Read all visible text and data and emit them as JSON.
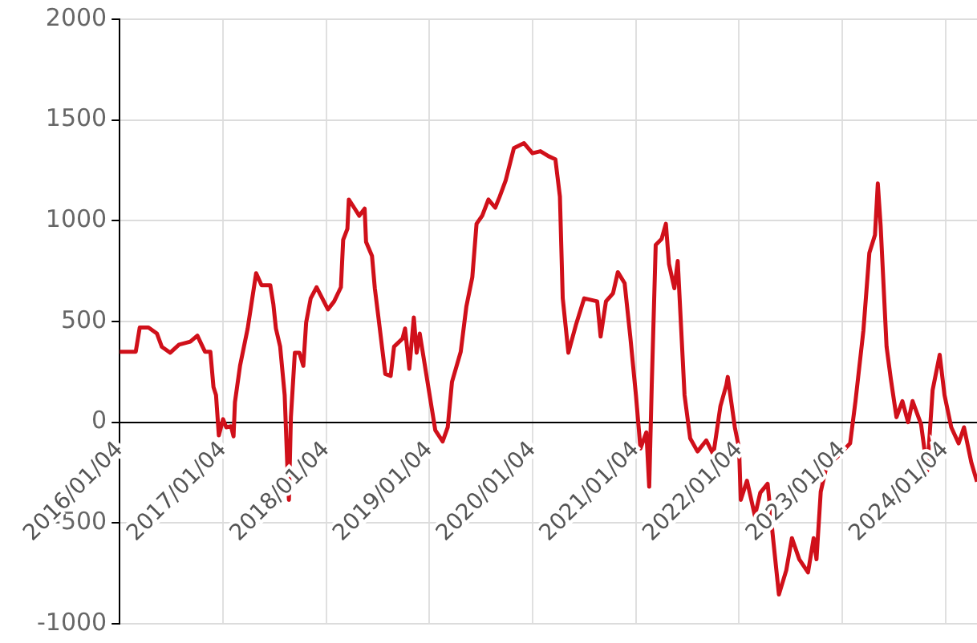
{
  "chart_data": {
    "type": "line",
    "x": [
      "2016-01-04",
      "2016-03-01",
      "2016-03-15",
      "2016-04-15",
      "2016-05-15",
      "2016-06-01",
      "2016-07-01",
      "2016-08-01",
      "2016-09-10",
      "2016-10-05",
      "2016-10-20",
      "2016-11-01",
      "2016-11-20",
      "2016-12-01",
      "2016-12-10",
      "2016-12-20",
      "2017-01-04",
      "2017-01-15",
      "2017-02-01",
      "2017-02-10",
      "2017-02-15",
      "2017-03-05",
      "2017-04-01",
      "2017-04-20",
      "2017-05-01",
      "2017-05-20",
      "2017-06-20",
      "2017-07-01",
      "2017-07-10",
      "2017-07-25",
      "2017-08-10",
      "2017-08-20",
      "2017-08-25",
      "2017-09-01",
      "2017-09-15",
      "2017-10-01",
      "2017-10-15",
      "2017-10-25",
      "2017-11-10",
      "2017-12-01",
      "2018-01-10",
      "2018-02-01",
      "2018-02-25",
      "2018-03-05",
      "2018-03-20",
      "2018-03-25",
      "2018-04-15",
      "2018-05-01",
      "2018-05-20",
      "2018-05-25",
      "2018-06-15",
      "2018-06-25",
      "2018-07-10",
      "2018-08-01",
      "2018-08-20",
      "2018-09-01",
      "2018-10-01",
      "2018-10-10",
      "2018-10-25",
      "2018-11-10",
      "2018-11-20",
      "2018-12-01",
      "2019-01-25",
      "2019-02-20",
      "2019-03-10",
      "2019-03-25",
      "2019-04-25",
      "2019-05-15",
      "2019-06-05",
      "2019-06-20",
      "2019-07-10",
      "2019-08-01",
      "2019-08-25",
      "2019-09-10",
      "2019-10-01",
      "2019-10-30",
      "2019-12-05",
      "2020-01-04",
      "2020-02-01",
      "2020-03-01",
      "2020-03-25",
      "2020-04-10",
      "2020-04-20",
      "2020-05-10",
      "2020-06-05",
      "2020-07-05",
      "2020-08-20",
      "2020-09-01",
      "2020-09-20",
      "2020-10-15",
      "2020-11-01",
      "2020-11-25",
      "2020-12-15",
      "2021-01-04",
      "2021-01-20",
      "2021-02-10",
      "2021-02-20",
      "2021-03-01",
      "2021-03-15",
      "2021-04-05",
      "2021-04-20",
      "2021-05-01",
      "2021-05-20",
      "2021-06-01",
      "2021-06-25",
      "2021-07-15",
      "2021-08-10",
      "2021-09-10",
      "2021-10-05",
      "2021-10-30",
      "2021-11-20",
      "2021-11-25",
      "2021-12-20",
      "2022-01-04",
      "2022-01-10",
      "2022-02-01",
      "2022-03-01",
      "2022-03-20",
      "2022-04-15",
      "2022-05-05",
      "2022-05-25",
      "2022-06-20",
      "2022-07-10",
      "2022-08-05",
      "2022-09-05",
      "2022-09-25",
      "2022-10-05",
      "2022-10-20",
      "2022-11-10",
      "2022-12-15",
      "2023-02-01",
      "2023-02-20",
      "2023-03-20",
      "2023-04-10",
      "2023-04-30",
      "2023-05-10",
      "2023-05-20",
      "2023-06-10",
      "2023-06-25",
      "2023-07-15",
      "2023-08-05",
      "2023-08-25",
      "2023-09-10",
      "2023-10-10",
      "2023-11-01",
      "2023-11-20",
      "2023-12-15",
      "2024-01-01",
      "2024-01-25",
      "2024-02-20",
      "2024-03-10",
      "2024-04-05",
      "2024-04-25"
    ],
    "series": [
      {
        "color": "#d0101a",
        "values": [
          350,
          350,
          470,
          470,
          440,
          375,
          345,
          385,
          400,
          430,
          385,
          350,
          350,
          175,
          135,
          -65,
          15,
          -25,
          -20,
          -70,
          100,
          280,
          465,
          640,
          740,
          680,
          680,
          585,
          465,
          375,
          135,
          -240,
          -385,
          25,
          345,
          345,
          280,
          495,
          615,
          670,
          560,
          600,
          670,
          905,
          960,
          1105,
          1060,
          1025,
          1060,
          895,
          825,
          665,
          495,
          240,
          230,
          375,
          415,
          465,
          265,
          520,
          345,
          440,
          -40,
          -95,
          -25,
          200,
          350,
          575,
          720,
          985,
          1025,
          1105,
          1065,
          1120,
          1200,
          1360,
          1385,
          1335,
          1345,
          1320,
          1305,
          1120,
          615,
          345,
          480,
          615,
          600,
          425,
          600,
          640,
          745,
          690,
          425,
          135,
          -130,
          -50,
          -320,
          185,
          880,
          910,
          985,
          785,
          665,
          800,
          135,
          -80,
          -145,
          -90,
          -160,
          80,
          185,
          225,
          -25,
          -130,
          -385,
          -290,
          -465,
          -350,
          -305,
          -585,
          -855,
          -735,
          -575,
          -680,
          -745,
          -575,
          -680,
          -345,
          -215,
          -175,
          -105,
          105,
          455,
          840,
          930,
          1185,
          975,
          375,
          215,
          25,
          105,
          0,
          105,
          -10,
          -240,
          160,
          335,
          135,
          -25,
          -105,
          -25,
          -200,
          -295
        ]
      }
    ],
    "xlim": [
      "2016-01-04",
      "2024-04-25"
    ],
    "xticks": [
      {
        "value": "2016-01-04",
        "label": "2016/01/04"
      },
      {
        "value": "2017-01-04",
        "label": "2017/01/04"
      },
      {
        "value": "2018-01-04",
        "label": "2018/01/04"
      },
      {
        "value": "2019-01-04",
        "label": "2019/01/04"
      },
      {
        "value": "2020-01-04",
        "label": "2020/01/04"
      },
      {
        "value": "2021-01-04",
        "label": "2021/01/04"
      },
      {
        "value": "2022-01-04",
        "label": "2022/01/04"
      },
      {
        "value": "2023-01-04",
        "label": "2023/01/04"
      },
      {
        "value": "2024-01-04",
        "label": "2024/01/04"
      }
    ],
    "ylim": [
      -1000,
      2000
    ],
    "yticks": [
      -1000,
      -500,
      0,
      500,
      1000,
      1500,
      2000
    ],
    "grid": true,
    "legend": false,
    "marker": "none",
    "line_style": "solid"
  }
}
